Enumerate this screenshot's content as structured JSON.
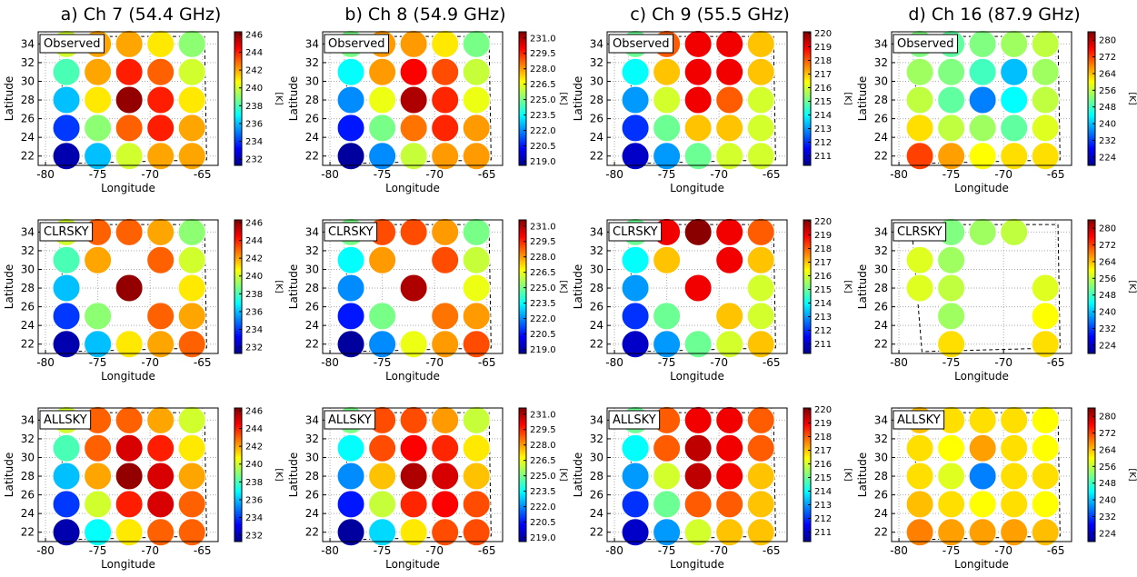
{
  "chart_data": [
    {
      "type": "scatter",
      "title": "a) Ch 7 (54.4 GHz)",
      "label": "Observed",
      "xlabel": "Longitude",
      "ylabel": "Latitude",
      "xlim": [
        -80.7,
        -63.5
      ],
      "xticks": [
        -80,
        -75,
        -70,
        -65
      ],
      "ylim": [
        21,
        35.3
      ],
      "yticks": [
        22,
        24,
        26,
        28,
        30,
        32,
        34
      ],
      "grid": true,
      "colormap": "jet",
      "x": [
        -78,
        -75,
        -72,
        -69,
        -66
      ],
      "y": [
        22,
        25,
        28,
        31,
        34
      ],
      "values": [
        [
          232,
          236,
          240,
          242,
          242
        ],
        [
          234,
          239,
          243,
          244,
          242
        ],
        [
          236,
          241,
          246,
          244,
          241
        ],
        [
          238,
          242,
          244,
          243,
          240
        ],
        [
          240,
          242,
          242,
          241,
          239
        ]
      ],
      "colorbar": {
        "label": "[K]",
        "lim": [
          231.3,
          246.3
        ],
        "ticks": [
          232,
          234,
          236,
          238,
          240,
          242,
          244,
          246
        ]
      }
    },
    {
      "type": "scatter",
      "label": "CLRSKY",
      "xlabel": "Longitude",
      "ylabel": "Latitude",
      "xlim": [
        -80.7,
        -63.5
      ],
      "xticks": [
        -80,
        -75,
        -70,
        -65
      ],
      "ylim": [
        21,
        35.3
      ],
      "yticks": [
        22,
        24,
        26,
        28,
        30,
        32,
        34
      ],
      "grid": true,
      "colormap": "jet",
      "x": [
        -78,
        -75,
        -72,
        -69,
        -66
      ],
      "y": [
        22,
        25,
        28,
        31,
        34
      ],
      "values": [
        [
          232,
          236,
          241,
          242,
          243
        ],
        [
          234,
          239,
          null,
          243,
          242
        ],
        [
          236,
          null,
          246,
          null,
          241
        ],
        [
          238,
          242,
          null,
          243,
          240
        ],
        [
          240,
          243,
          243,
          242,
          239
        ]
      ],
      "colorbar": {
        "label": "[K]",
        "lim": [
          231.3,
          246.3
        ],
        "ticks": [
          232,
          234,
          236,
          238,
          240,
          242,
          244,
          246
        ]
      }
    },
    {
      "type": "scatter",
      "label": "ALLSKY",
      "xlabel": "Longitude",
      "ylabel": "Latitude",
      "xlim": [
        -80.7,
        -63.5
      ],
      "xticks": [
        -80,
        -75,
        -70,
        -65
      ],
      "ylim": [
        21,
        35.3
      ],
      "yticks": [
        22,
        24,
        26,
        28,
        30,
        32,
        34
      ],
      "grid": true,
      "colormap": "jet",
      "x": [
        -78,
        -75,
        -72,
        -69,
        -66
      ],
      "y": [
        22,
        25,
        28,
        31,
        34
      ],
      "values": [
        [
          232,
          237,
          241,
          243,
          243
        ],
        [
          234,
          240,
          244,
          245,
          243
        ],
        [
          236,
          242,
          246,
          245,
          242
        ],
        [
          238,
          243,
          245,
          244,
          241
        ],
        [
          240,
          243,
          243,
          242,
          240
        ]
      ],
      "colorbar": {
        "label": "[K]",
        "lim": [
          231.3,
          246.3
        ],
        "ticks": [
          232,
          234,
          236,
          238,
          240,
          242,
          244,
          246
        ]
      }
    },
    {
      "type": "scatter",
      "title": "b) Ch 8 (54.9 GHz)",
      "label": "Observed",
      "xlabel": "Longitude",
      "ylabel": "Latitude",
      "xlim": [
        -80.7,
        -63.5
      ],
      "xticks": [
        -80,
        -75,
        -70,
        -65
      ],
      "ylim": [
        21,
        35.3
      ],
      "yticks": [
        22,
        24,
        26,
        28,
        30,
        32,
        34
      ],
      "grid": true,
      "colormap": "jet",
      "x": [
        -78,
        -75,
        -72,
        -69,
        -66
      ],
      "y": [
        22,
        25,
        28,
        31,
        34
      ],
      "values": [
        [
          219,
          222,
          226,
          228,
          228
        ],
        [
          220.5,
          225,
          228.5,
          229.5,
          228
        ],
        [
          222,
          226.5,
          231,
          229.5,
          226.5
        ],
        [
          223.5,
          228,
          230,
          229,
          226
        ],
        [
          225,
          228,
          228,
          227,
          225
        ]
      ],
      "colorbar": {
        "label": "[K]",
        "lim": [
          218.6,
          231.6
        ],
        "ticks": [
          {
            "value": 219,
            "label": "219.0"
          },
          220.5,
          {
            "value": 222,
            "label": "222.0"
          },
          223.5,
          {
            "value": 225,
            "label": "225.0"
          },
          226.5,
          {
            "value": 228,
            "label": "228.0"
          },
          229.5,
          {
            "value": 231,
            "label": "231.0"
          }
        ]
      }
    },
    {
      "type": "scatter",
      "label": "CLRSKY",
      "xlabel": "Longitude",
      "ylabel": "Latitude",
      "xlim": [
        -80.7,
        -63.5
      ],
      "xticks": [
        -80,
        -75,
        -70,
        -65
      ],
      "ylim": [
        21,
        35.3
      ],
      "yticks": [
        22,
        24,
        26,
        28,
        30,
        32,
        34
      ],
      "grid": true,
      "colormap": "jet",
      "x": [
        -78,
        -75,
        -72,
        -69,
        -66
      ],
      "y": [
        22,
        25,
        28,
        31,
        34
      ],
      "values": [
        [
          219,
          222,
          226.5,
          228,
          229
        ],
        [
          220.5,
          225,
          null,
          228.5,
          228
        ],
        [
          222,
          null,
          231,
          null,
          226.5
        ],
        [
          223.5,
          228,
          null,
          229,
          226
        ],
        [
          225,
          229,
          229,
          228,
          225
        ]
      ],
      "colorbar": {
        "label": "[K]",
        "lim": [
          218.6,
          231.6
        ],
        "ticks": [
          {
            "value": 219,
            "label": "219.0"
          },
          220.5,
          {
            "value": 222,
            "label": "222.0"
          },
          223.5,
          {
            "value": 225,
            "label": "225.0"
          },
          226.5,
          {
            "value": 228,
            "label": "228.0"
          },
          229.5,
          {
            "value": 231,
            "label": "231.0"
          }
        ]
      }
    },
    {
      "type": "scatter",
      "label": "ALLSKY",
      "xlabel": "Longitude",
      "ylabel": "Latitude",
      "xlim": [
        -80.7,
        -63.5
      ],
      "xticks": [
        -80,
        -75,
        -70,
        -65
      ],
      "ylim": [
        21,
        35.3
      ],
      "yticks": [
        22,
        24,
        26,
        28,
        30,
        32,
        34
      ],
      "grid": true,
      "colormap": "jet",
      "x": [
        -78,
        -75,
        -72,
        -69,
        -66
      ],
      "y": [
        22,
        25,
        28,
        31,
        34
      ],
      "values": [
        [
          219,
          223,
          227,
          229,
          229
        ],
        [
          220.5,
          226,
          229.5,
          230,
          229
        ],
        [
          222,
          227.5,
          231,
          230.5,
          227.5
        ],
        [
          223.5,
          229,
          230,
          229.5,
          227
        ],
        [
          225,
          229,
          229,
          228,
          226
        ]
      ],
      "colorbar": {
        "label": "[K]",
        "lim": [
          218.6,
          231.6
        ],
        "ticks": [
          {
            "value": 219,
            "label": "219.0"
          },
          220.5,
          {
            "value": 222,
            "label": "222.0"
          },
          223.5,
          {
            "value": 225,
            "label": "225.0"
          },
          226.5,
          {
            "value": 228,
            "label": "228.0"
          },
          229.5,
          {
            "value": 231,
            "label": "231.0"
          }
        ]
      }
    },
    {
      "type": "scatter",
      "title": "c) Ch 9 (55.5 GHz)",
      "label": "Observed",
      "xlabel": "Longitude",
      "ylabel": "Latitude",
      "xlim": [
        -80.7,
        -63.5
      ],
      "xticks": [
        -80,
        -75,
        -70,
        -65
      ],
      "ylim": [
        21,
        35.3
      ],
      "yticks": [
        22,
        24,
        26,
        28,
        30,
        32,
        34
      ],
      "grid": true,
      "colormap": "jet",
      "x": [
        -78,
        -75,
        -72,
        -69,
        -66
      ],
      "y": [
        22,
        25,
        28,
        31,
        34
      ],
      "values": [
        [
          211,
          213,
          215,
          216,
          216
        ],
        [
          212,
          215,
          217,
          217,
          216
        ],
        [
          213,
          216,
          219,
          218,
          216
        ],
        [
          214,
          217,
          219,
          219,
          217
        ],
        [
          215,
          218,
          219,
          219,
          217
        ]
      ],
      "colorbar": {
        "label": "[K]",
        "lim": [
          210.3,
          220.1
        ],
        "ticks": [
          211,
          212,
          213,
          214,
          215,
          216,
          217,
          218,
          219,
          220
        ]
      }
    },
    {
      "type": "scatter",
      "label": "CLRSKY",
      "xlabel": "Longitude",
      "ylabel": "Latitude",
      "xlim": [
        -80.7,
        -63.5
      ],
      "xticks": [
        -80,
        -75,
        -70,
        -65
      ],
      "ylim": [
        21,
        35.3
      ],
      "yticks": [
        22,
        24,
        26,
        28,
        30,
        32,
        34
      ],
      "grid": true,
      "colormap": "jet",
      "x": [
        -78,
        -75,
        -72,
        -69,
        -66
      ],
      "y": [
        22,
        25,
        28,
        31,
        34
      ],
      "values": [
        [
          211,
          213,
          215,
          216,
          217
        ],
        [
          212,
          215,
          null,
          217,
          216
        ],
        [
          213,
          null,
          219,
          null,
          216
        ],
        [
          214,
          217,
          null,
          219,
          217
        ],
        [
          215,
          219,
          220,
          219,
          218
        ]
      ],
      "colorbar": {
        "label": "[K]",
        "lim": [
          210.3,
          220.1
        ],
        "ticks": [
          211,
          212,
          213,
          214,
          215,
          216,
          217,
          218,
          219,
          220
        ]
      }
    },
    {
      "type": "scatter",
      "label": "ALLSKY",
      "xlabel": "Longitude",
      "ylabel": "Latitude",
      "xlim": [
        -80.7,
        -63.5
      ],
      "xticks": [
        -80,
        -75,
        -70,
        -65
      ],
      "ylim": [
        21,
        35.3
      ],
      "yticks": [
        22,
        24,
        26,
        28,
        30,
        32,
        34
      ],
      "grid": true,
      "colormap": "jet",
      "x": [
        -78,
        -75,
        -72,
        -69,
        -66
      ],
      "y": [
        22,
        25,
        28,
        31,
        34
      ],
      "values": [
        [
          211,
          213,
          216,
          217,
          217
        ],
        [
          212,
          215,
          218,
          218,
          217
        ],
        [
          213,
          216,
          219.5,
          219,
          217
        ],
        [
          214,
          218,
          219.5,
          219,
          218
        ],
        [
          215,
          218,
          219,
          219,
          218
        ]
      ],
      "colorbar": {
        "label": "[K]",
        "lim": [
          210.3,
          220.1
        ],
        "ticks": [
          211,
          212,
          213,
          214,
          215,
          216,
          217,
          218,
          219,
          220
        ]
      }
    },
    {
      "type": "scatter",
      "title": "d) Ch 16 (87.9 GHz)",
      "label": "Observed",
      "xlabel": "Longitude",
      "ylabel": "Latitude",
      "xlim": [
        -80.7,
        -63.5
      ],
      "xticks": [
        -80,
        -75,
        -70,
        -65
      ],
      "ylim": [
        21,
        35.3
      ],
      "yticks": [
        22,
        24,
        26,
        28,
        30,
        32,
        34
      ],
      "grid": true,
      "colormap": "jet",
      "x": [
        -78,
        -75,
        -72,
        -69,
        -66
      ],
      "y": [
        22,
        25,
        28,
        31,
        34
      ],
      "values": [
        [
          272,
          266,
          260,
          262,
          262
        ],
        [
          262,
          256,
          254,
          250,
          258
        ],
        [
          256,
          250,
          236,
          244,
          256
        ],
        [
          254,
          252,
          248,
          240,
          254
        ],
        [
          252,
          250,
          252,
          254,
          256
        ]
      ],
      "colorbar": {
        "label": "[K]",
        "lim": [
          220,
          284
        ],
        "ticks": [
          224,
          232,
          240,
          248,
          256,
          264,
          272,
          280
        ]
      }
    },
    {
      "type": "scatter",
      "label": "CLRSKY",
      "xlabel": "Longitude",
      "ylabel": "Latitude",
      "xlim": [
        -80.7,
        -63.5
      ],
      "xticks": [
        -80,
        -75,
        -70,
        -65
      ],
      "ylim": [
        21,
        35.3
      ],
      "yticks": [
        22,
        24,
        26,
        28,
        30,
        32,
        34
      ],
      "grid": true,
      "colormap": "jet",
      "x": [
        -78,
        -75,
        -72,
        -69,
        -66
      ],
      "y": [
        22,
        25,
        28,
        31,
        34
      ],
      "values": [
        [
          null,
          262,
          null,
          null,
          262
        ],
        [
          null,
          254,
          null,
          null,
          260
        ],
        [
          258,
          256,
          null,
          null,
          258
        ],
        [
          258,
          254,
          null,
          null,
          null
        ],
        [
          null,
          252,
          254,
          256,
          null
        ]
      ],
      "colorbar": {
        "label": "[K]",
        "lim": [
          220,
          284
        ],
        "ticks": [
          224,
          232,
          240,
          248,
          256,
          264,
          272,
          280
        ]
      }
    },
    {
      "type": "scatter",
      "label": "ALLSKY",
      "xlabel": "Longitude",
      "ylabel": "Latitude",
      "xlim": [
        -80.7,
        -63.5
      ],
      "xticks": [
        -80,
        -75,
        -70,
        -65
      ],
      "ylim": [
        21,
        35.3
      ],
      "yticks": [
        22,
        24,
        26,
        28,
        30,
        32,
        34
      ],
      "grid": true,
      "colormap": "jet",
      "x": [
        -78,
        -75,
        -72,
        -69,
        -66
      ],
      "y": [
        22,
        25,
        28,
        31,
        34
      ],
      "values": [
        [
          268,
          266,
          266,
          266,
          264
        ],
        [
          264,
          262,
          260,
          262,
          260
        ],
        [
          262,
          258,
          236,
          262,
          262
        ],
        [
          262,
          260,
          266,
          262,
          260
        ],
        [
          264,
          262,
          262,
          262,
          260
        ]
      ],
      "colorbar": {
        "label": "[K]",
        "lim": [
          220,
          284
        ],
        "ticks": [
          224,
          232,
          240,
          248,
          256,
          264,
          272,
          280
        ]
      }
    }
  ]
}
